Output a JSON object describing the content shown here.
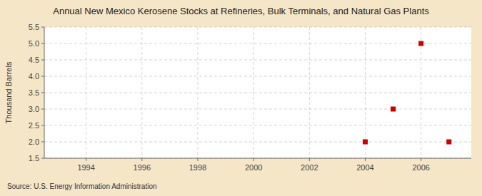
{
  "chart_data": {
    "type": "scatter",
    "title": "Annual New Mexico Kerosene Stocks at Refineries, Bulk Terminals, and Natural Gas Plants",
    "y_label": "Thousand Barrels",
    "source": "Source: U.S. Energy Information Administration",
    "x": [
      2004,
      2005,
      2006,
      2007
    ],
    "values": [
      2.0,
      3.0,
      5.0,
      2.0
    ],
    "color": "#CC0000",
    "marker": "square",
    "xlim": [
      1992.5,
      2007.8
    ],
    "ylim": [
      1.5,
      5.5
    ],
    "xticks": [
      1994,
      1996,
      1998,
      2000,
      2002,
      2004,
      2006
    ],
    "yticks": [
      1.5,
      {
        "value": 2.0,
        "label": "2.0"
      },
      2.5,
      {
        "value": 3.0,
        "label": "3.0"
      },
      3.5,
      {
        "value": 4.0,
        "label": "4.0"
      },
      4.5,
      {
        "value": 5.0,
        "label": "5.0"
      },
      5.5
    ],
    "grid": true
  }
}
